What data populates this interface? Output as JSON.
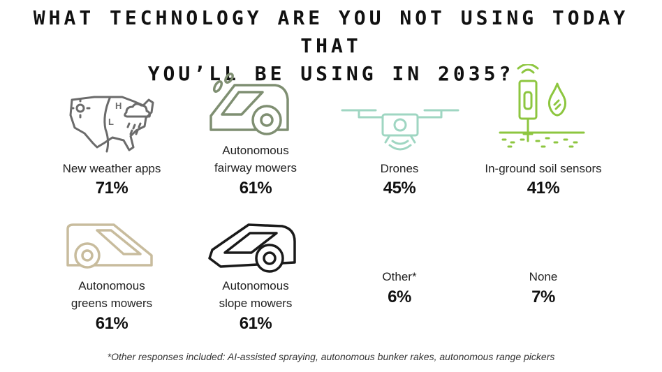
{
  "title_line1": "WHAT TECHNOLOGY ARE YOU NOT USING TODAY THAT",
  "title_line2": "YOU’LL BE USING IN 2035?",
  "chart_data": {
    "type": "table",
    "items": [
      {
        "label": "New weather apps",
        "value": 71,
        "display": "71%",
        "icon": "weather-map-icon",
        "color": "#6b6b6b"
      },
      {
        "label_line1": "Autonomous",
        "label_line2": "fairway mowers",
        "value": 61,
        "display": "61%",
        "icon": "fairway-mower-icon",
        "color": "#7f8f72"
      },
      {
        "label": "Drones",
        "value": 45,
        "display": "45%",
        "icon": "drone-icon",
        "color": "#9fd6c2"
      },
      {
        "label": "In-ground soil sensors",
        "value": 41,
        "display": "41%",
        "icon": "soil-sensor-icon",
        "color": "#8dc63f"
      },
      {
        "label_line1": "Autonomous",
        "label_line2": "greens mowers",
        "value": 61,
        "display": "61%",
        "icon": "greens-mower-icon",
        "color": "#c8bc9d"
      },
      {
        "label_line1": "Autonomous",
        "label_line2": "slope mowers",
        "value": 61,
        "display": "61%",
        "icon": "slope-mower-icon",
        "color": "#1a1a1a"
      },
      {
        "label": "Other*",
        "value": 6,
        "display": "6%"
      },
      {
        "label": "None",
        "value": 7,
        "display": "7%"
      }
    ]
  },
  "footnote": "*Other responses included: AI-assisted spraying, autonomous bunker rakes, autonomous range pickers"
}
